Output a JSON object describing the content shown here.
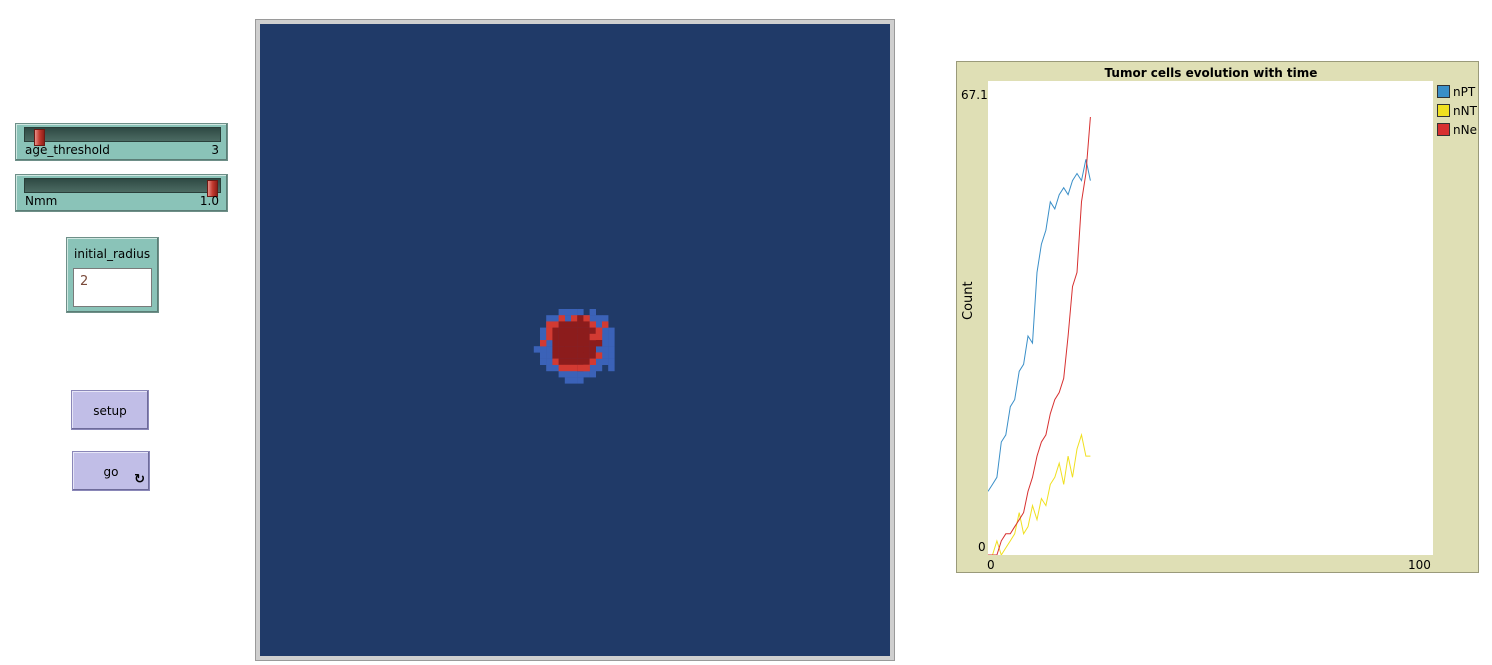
{
  "sliders": [
    {
      "name": "age_threshold",
      "value": "3",
      "fraction": 0.05
    },
    {
      "name": "Nmm",
      "value": "1.0",
      "fraction": 1.0
    }
  ],
  "input": {
    "label": "initial_radius",
    "value": "2"
  },
  "buttons": {
    "setup": "setup",
    "go": "go",
    "go_icon": "forever-icon"
  },
  "colors": {
    "world_bg": "#203a68",
    "patch_blue": "#3b62b8",
    "patch_red": "#d23a32",
    "patch_darkred": "#8c1c1c",
    "nPT": "#3a8fc8",
    "nNT": "#f0e020",
    "nNe": "#d73030"
  },
  "chart_data": {
    "type": "line",
    "title": "Tumor cells evolution with time",
    "xlabel": "",
    "ylabel": "Count",
    "xlim": [
      0,
      100
    ],
    "ylim": [
      0,
      67.1
    ],
    "x_tick_labels": [
      "0",
      "100"
    ],
    "y_tick_labels": [
      "0",
      "67.1"
    ],
    "legend_position": "right",
    "series": [
      {
        "name": "nPT",
        "color": "#3a8fc8",
        "x": [
          0,
          1,
          2,
          3,
          4,
          5,
          6,
          7,
          8,
          9,
          10,
          11,
          12,
          13,
          14,
          15,
          16,
          17,
          18,
          19,
          20,
          21,
          22,
          23
        ],
        "y": [
          9,
          10,
          11,
          16,
          17,
          21,
          22,
          26,
          27,
          31,
          30,
          40,
          44,
          46,
          50,
          49,
          51,
          52,
          51,
          53,
          54,
          53,
          56,
          53
        ]
      },
      {
        "name": "nNT",
        "color": "#f0e020",
        "x": [
          0,
          1,
          2,
          3,
          4,
          5,
          6,
          7,
          8,
          9,
          10,
          11,
          12,
          13,
          14,
          15,
          16,
          17,
          18,
          19,
          20,
          21,
          22,
          23
        ],
        "y": [
          0,
          0,
          2,
          0,
          1,
          2,
          3,
          6,
          3,
          4,
          7,
          5,
          8,
          7,
          10,
          11,
          13,
          10,
          14,
          11,
          15,
          17,
          14,
          14
        ]
      },
      {
        "name": "nNe",
        "color": "#d73030",
        "x": [
          0,
          1,
          2,
          3,
          4,
          5,
          6,
          7,
          8,
          9,
          10,
          11,
          12,
          13,
          14,
          15,
          16,
          17,
          18,
          19,
          20,
          21,
          22,
          23
        ],
        "y": [
          0,
          0,
          0,
          2,
          3,
          3,
          4,
          5,
          6,
          9,
          11,
          14,
          16,
          17,
          20,
          22,
          23,
          25,
          31,
          38,
          40,
          50,
          54,
          62
        ]
      }
    ]
  }
}
